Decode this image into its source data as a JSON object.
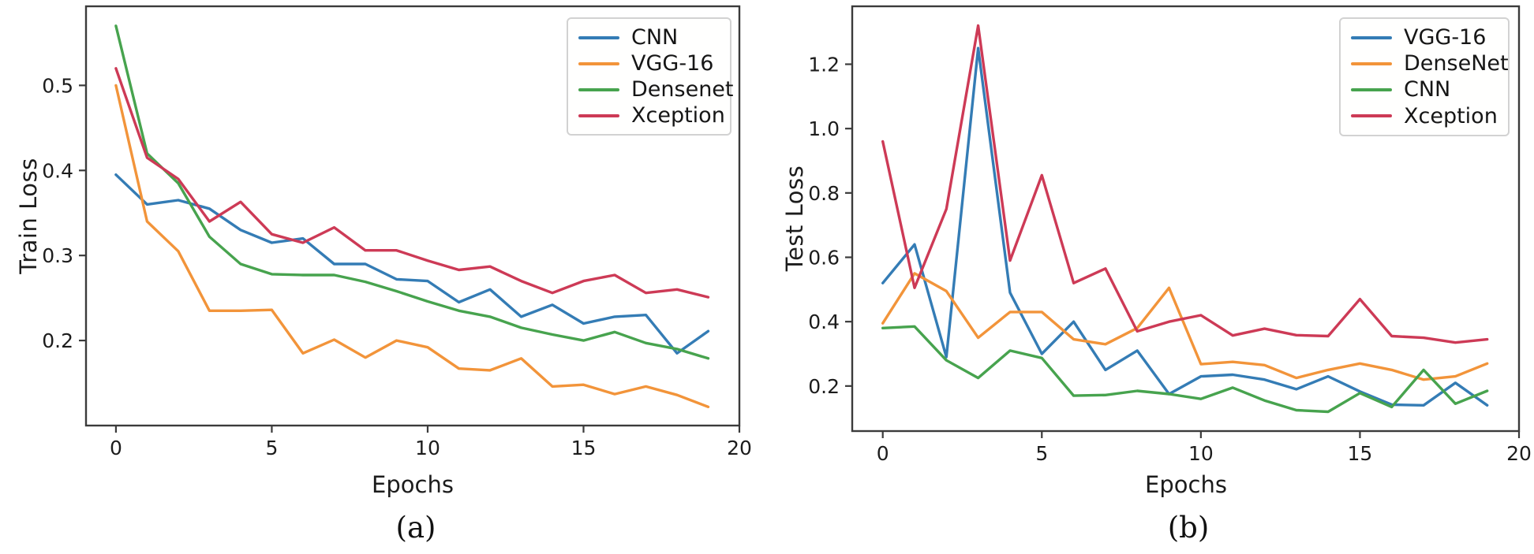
{
  "figure": {
    "captions": {
      "a": "(a)",
      "b": "(b)"
    }
  },
  "chart_data": [
    {
      "id": "a",
      "type": "line",
      "title": "",
      "xlabel": "Epochs",
      "ylabel": "Train Loss",
      "caption": "(a)",
      "grid": false,
      "legend_position": "upper right",
      "xlim": [
        -0.96,
        20
      ],
      "ylim": [
        0.1,
        0.593
      ],
      "x_ticks": [
        0,
        5,
        10,
        15,
        20
      ],
      "x_tick_labels": [
        "0",
        "5",
        "10",
        "15",
        "20"
      ],
      "y_ticks": [
        0.2,
        0.3,
        0.4,
        0.5
      ],
      "y_tick_labels": [
        "0.2",
        "0.3",
        "0.4",
        "0.5"
      ],
      "x": [
        0,
        1,
        2,
        3,
        4,
        5,
        6,
        7,
        8,
        9,
        10,
        11,
        12,
        13,
        14,
        15,
        16,
        17,
        18,
        19
      ],
      "series": [
        {
          "name": "CNN",
          "color": "#347cb5",
          "values": [
            0.395,
            0.36,
            0.365,
            0.355,
            0.33,
            0.315,
            0.32,
            0.29,
            0.29,
            0.272,
            0.27,
            0.245,
            0.26,
            0.228,
            0.242,
            0.22,
            0.228,
            0.23,
            0.185,
            0.211
          ]
        },
        {
          "name": "VGG-16",
          "color": "#f2943a",
          "values": [
            0.5,
            0.34,
            0.305,
            0.235,
            0.235,
            0.236,
            0.185,
            0.201,
            0.18,
            0.2,
            0.192,
            0.167,
            0.165,
            0.179,
            0.146,
            0.148,
            0.137,
            0.146,
            0.136,
            0.122
          ]
        },
        {
          "name": "Densenet",
          "color": "#47a34e",
          "values": [
            0.57,
            0.42,
            0.385,
            0.322,
            0.29,
            0.278,
            0.277,
            0.277,
            0.269,
            0.258,
            0.246,
            0.235,
            0.228,
            0.215,
            0.207,
            0.2,
            0.21,
            0.197,
            0.19,
            0.179
          ]
        },
        {
          "name": "Xception",
          "color": "#cd3a56",
          "values": [
            0.52,
            0.415,
            0.39,
            0.34,
            0.363,
            0.325,
            0.315,
            0.333,
            0.306,
            0.306,
            0.294,
            0.283,
            0.287,
            0.27,
            0.256,
            0.27,
            0.277,
            0.256,
            0.26,
            0.251
          ]
        }
      ]
    },
    {
      "id": "b",
      "type": "line",
      "title": "",
      "xlabel": "Epochs",
      "ylabel": "Test Loss",
      "caption": "(b)",
      "grid": false,
      "legend_position": "upper right",
      "xlim": [
        -0.96,
        20
      ],
      "ylim": [
        0.06,
        1.38
      ],
      "x_ticks": [
        0,
        5,
        10,
        15,
        20
      ],
      "x_tick_labels": [
        "0",
        "5",
        "10",
        "15",
        "20"
      ],
      "y_ticks": [
        0.2,
        0.4,
        0.6,
        0.8,
        1.0,
        1.2
      ],
      "y_tick_labels": [
        "0.2",
        "0.4",
        "0.6",
        "0.8",
        "1.0",
        "1.2"
      ],
      "x": [
        0,
        1,
        2,
        3,
        4,
        5,
        6,
        7,
        8,
        9,
        10,
        11,
        12,
        13,
        14,
        15,
        16,
        17,
        18,
        19
      ],
      "series": [
        {
          "name": "VGG-16",
          "color": "#347cb5",
          "values": [
            0.52,
            0.64,
            0.29,
            1.25,
            0.49,
            0.3,
            0.4,
            0.25,
            0.31,
            0.175,
            0.23,
            0.235,
            0.22,
            0.19,
            0.23,
            0.183,
            0.142,
            0.14,
            0.21,
            0.14
          ]
        },
        {
          "name": "DenseNet",
          "color": "#f2943a",
          "values": [
            0.395,
            0.55,
            0.495,
            0.35,
            0.43,
            0.43,
            0.345,
            0.33,
            0.38,
            0.505,
            0.268,
            0.275,
            0.265,
            0.225,
            0.25,
            0.27,
            0.25,
            0.22,
            0.23,
            0.27
          ]
        },
        {
          "name": "CNN",
          "color": "#47a34e",
          "values": [
            0.38,
            0.385,
            0.28,
            0.225,
            0.31,
            0.287,
            0.17,
            0.172,
            0.185,
            0.175,
            0.16,
            0.195,
            0.155,
            0.125,
            0.12,
            0.178,
            0.135,
            0.25,
            0.145,
            0.185
          ]
        },
        {
          "name": "Xception",
          "color": "#cd3a56",
          "values": [
            0.96,
            0.505,
            0.75,
            1.32,
            0.59,
            0.855,
            0.52,
            0.565,
            0.37,
            0.4,
            0.42,
            0.357,
            0.378,
            0.358,
            0.355,
            0.47,
            0.355,
            0.35,
            0.335,
            0.345
          ]
        }
      ]
    }
  ]
}
